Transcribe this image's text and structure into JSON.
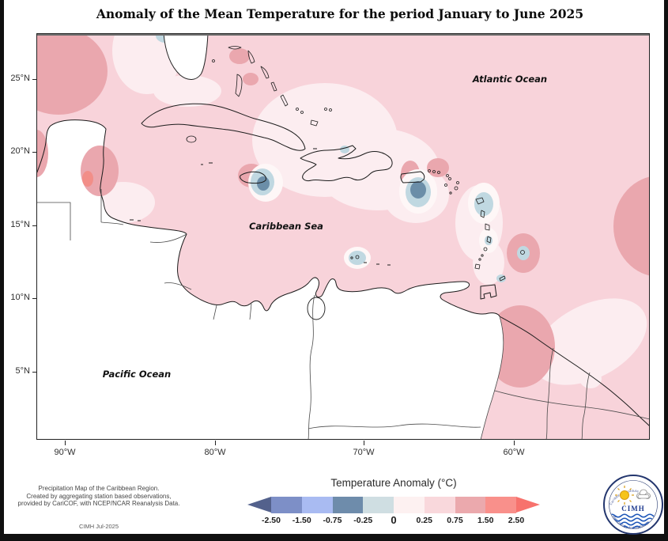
{
  "title": "Anomaly of the Mean Temperature for the period January to June 2025",
  "map": {
    "ocean_labels": {
      "atlantic": "Atlantic Ocean",
      "caribbean": "Caribbean Sea",
      "pacific": "Pacific Ocean"
    },
    "lat_tick_labels": [
      "25°N",
      "20°N",
      "15°N",
      "10°N",
      "5°N"
    ],
    "lon_tick_labels": [
      "90°W",
      "80°W",
      "70°W",
      "60°W"
    ]
  },
  "legend": {
    "title": "Temperature Anomaly (°C)",
    "tick_labels": [
      "-2.50",
      "-1.50",
      "-0.75",
      "-0.25",
      "0",
      "0.25",
      "0.75",
      "1.50",
      "2.50"
    ],
    "segment_colors": [
      "#7d8fc7",
      "#a9bbf2",
      "#6e8cab",
      "#cfdee2",
      "#fdf1f1",
      "#f9d8dc",
      "#eba9ad",
      "#f9908b"
    ],
    "arrow_colors": {
      "left": "#53618c",
      "right": "#f7726d"
    }
  },
  "map_colors": {
    "ocean_base": "#f8d3da",
    "very_light_positive": "#fcedf0",
    "halo_white": "#fef7f7",
    "light_negative": "#c0d8e1",
    "strong_negative": "#6b8ea8",
    "moderate_positive": "#eaa7ae",
    "strong_positive": "#f28e88",
    "no_data_land": "#ffffff"
  },
  "anomaly_features": [
    {
      "location": "Eastern Jamaica",
      "anomaly": "-0.75 to -0.25 °C core with -0.25 to 0 °C ring"
    },
    {
      "location": "South of Puerto Rico / Virgin Islands",
      "anomaly": "-0.75 to -0.25 °C core"
    },
    {
      "location": "Guadeloupe–Dominica area",
      "anomaly": "-0.25 to 0 °C"
    },
    {
      "location": "Margarita / NE Venezuela coast",
      "anomaly": "-0.25 to 0 °C"
    },
    {
      "location": "Barbados area",
      "anomaly": "-0.25 to 0 °C spot inside +0.75 to +1.50 °C ring"
    },
    {
      "location": "Belize coast",
      "anomaly": "+1.50 to +2.50 °C core"
    },
    {
      "location": "Guyana interior",
      "anomaly": "+0.75 to +1.50 °C"
    },
    {
      "location": "Top-left corner (Gulf of Mexico)",
      "anomaly": "+0.75 to +1.50 °C"
    },
    {
      "location": "Bahamas (two spots)",
      "anomaly": "+0.75 to +1.50 °C"
    },
    {
      "location": "Most of Caribbean Sea and Atlantic",
      "anomaly": "+0.25 to +0.75 °C"
    },
    {
      "location": "Eastern Cuba – Hispaniola band",
      "anomaly": "0 to +0.25 °C"
    }
  ],
  "credits": {
    "lines": [
      "Precipitation Map of the Caribbean Region.",
      "Created by aggregating station based observations,",
      "provided by CariCOF, with NCEP/NCAR Reanalysis Data."
    ],
    "stamp": "CIMH Jul-2025"
  },
  "logo": {
    "acronym": "CIMH",
    "ring_text_top": "Caribbean Institute of",
    "ring_text_bottom": "Meteorology and Hydrology"
  }
}
